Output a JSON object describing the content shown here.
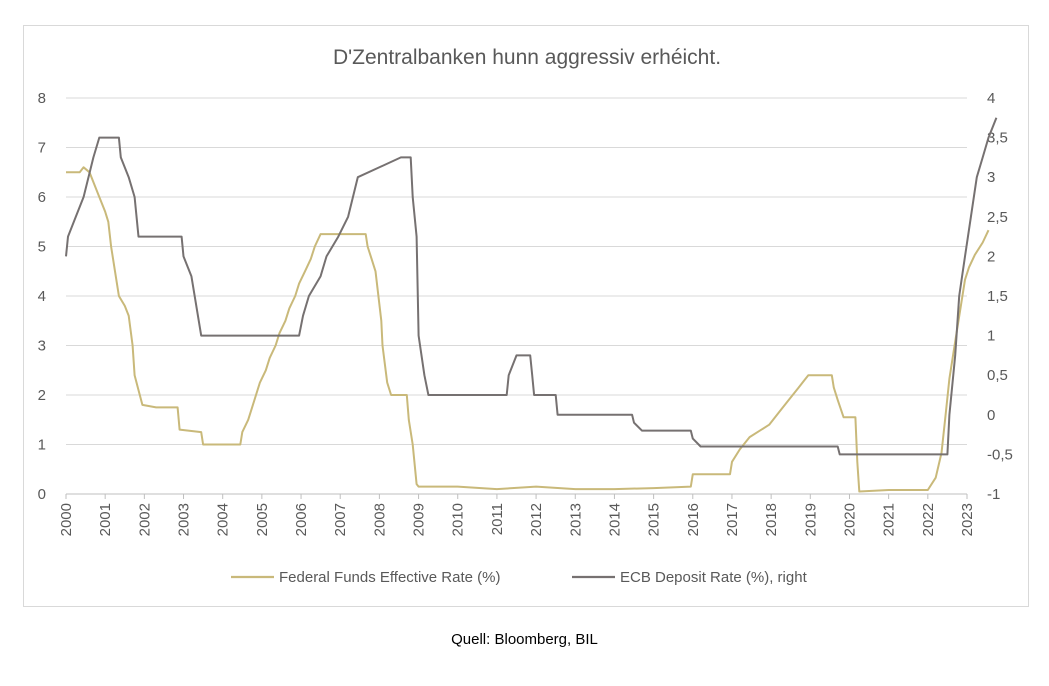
{
  "source": "Quell: Bloomberg, BIL",
  "chart_data": {
    "type": "line",
    "title": "D'Zentralbanken hunn aggressiv erhéicht.",
    "xlabel": "",
    "ylabel": "",
    "x_ticks": [
      "2000",
      "2001",
      "2002",
      "2003",
      "2004",
      "2005",
      "2006",
      "2007",
      "2008",
      "2009",
      "2010",
      "2011",
      "2012",
      "2013",
      "2014",
      "2015",
      "2016",
      "2017",
      "2018",
      "2019",
      "2020",
      "2021",
      "2022",
      "2023"
    ],
    "x_range": [
      2000,
      2023
    ],
    "y_left": {
      "range": [
        0,
        8
      ],
      "ticks": [
        "0",
        "1",
        "2",
        "3",
        "4",
        "5",
        "6",
        "7",
        "8"
      ]
    },
    "y_right": {
      "range": [
        -1,
        4
      ],
      "ticks": [
        "-1",
        "-0,5",
        "0",
        "0,5",
        "1",
        "1,5",
        "2",
        "2,5",
        "3",
        "3,5",
        "4"
      ]
    },
    "grid": "horizontal",
    "legend_position": "bottom",
    "series": [
      {
        "name": "Federal Funds Effective Rate (%)",
        "axis": "left",
        "color": "#c9b97a",
        "points": [
          [
            2000.0,
            6.5
          ],
          [
            2000.35,
            6.5
          ],
          [
            2000.45,
            6.6
          ],
          [
            2000.6,
            6.5
          ],
          [
            2000.85,
            6.0
          ],
          [
            2001.0,
            5.7
          ],
          [
            2001.08,
            5.5
          ],
          [
            2001.15,
            5.0
          ],
          [
            2001.25,
            4.5
          ],
          [
            2001.35,
            4.0
          ],
          [
            2001.5,
            3.8
          ],
          [
            2001.6,
            3.6
          ],
          [
            2001.7,
            3.0
          ],
          [
            2001.75,
            2.4
          ],
          [
            2001.85,
            2.1
          ],
          [
            2001.95,
            1.8
          ],
          [
            2002.3,
            1.75
          ],
          [
            2002.85,
            1.75
          ],
          [
            2002.9,
            1.3
          ],
          [
            2003.45,
            1.25
          ],
          [
            2003.5,
            1.0
          ],
          [
            2004.0,
            1.0
          ],
          [
            2004.45,
            1.0
          ],
          [
            2004.5,
            1.25
          ],
          [
            2004.65,
            1.5
          ],
          [
            2004.75,
            1.75
          ],
          [
            2004.85,
            2.0
          ],
          [
            2004.95,
            2.25
          ],
          [
            2005.1,
            2.5
          ],
          [
            2005.2,
            2.75
          ],
          [
            2005.35,
            3.0
          ],
          [
            2005.45,
            3.25
          ],
          [
            2005.6,
            3.5
          ],
          [
            2005.7,
            3.75
          ],
          [
            2005.85,
            4.0
          ],
          [
            2005.95,
            4.25
          ],
          [
            2006.1,
            4.5
          ],
          [
            2006.25,
            4.75
          ],
          [
            2006.35,
            5.0
          ],
          [
            2006.5,
            5.25
          ],
          [
            2007.65,
            5.25
          ],
          [
            2007.7,
            5.0
          ],
          [
            2007.8,
            4.75
          ],
          [
            2007.9,
            4.5
          ],
          [
            2008.05,
            3.5
          ],
          [
            2008.08,
            3.0
          ],
          [
            2008.2,
            2.25
          ],
          [
            2008.3,
            2.0
          ],
          [
            2008.7,
            2.0
          ],
          [
            2008.75,
            1.5
          ],
          [
            2008.85,
            1.0
          ],
          [
            2008.95,
            0.2
          ],
          [
            2009.0,
            0.15
          ],
          [
            2010.0,
            0.15
          ],
          [
            2011.0,
            0.1
          ],
          [
            2012.0,
            0.15
          ],
          [
            2013.0,
            0.1
          ],
          [
            2014.0,
            0.1
          ],
          [
            2015.0,
            0.12
          ],
          [
            2015.95,
            0.15
          ],
          [
            2016.0,
            0.4
          ],
          [
            2016.95,
            0.4
          ],
          [
            2017.0,
            0.65
          ],
          [
            2017.2,
            0.9
          ],
          [
            2017.45,
            1.15
          ],
          [
            2017.95,
            1.4
          ],
          [
            2018.2,
            1.65
          ],
          [
            2018.45,
            1.9
          ],
          [
            2018.7,
            2.15
          ],
          [
            2018.95,
            2.4
          ],
          [
            2019.55,
            2.4
          ],
          [
            2019.6,
            2.15
          ],
          [
            2019.7,
            1.9
          ],
          [
            2019.85,
            1.55
          ],
          [
            2020.15,
            1.55
          ],
          [
            2020.2,
            0.65
          ],
          [
            2020.25,
            0.05
          ],
          [
            2021.0,
            0.08
          ],
          [
            2022.0,
            0.08
          ],
          [
            2022.2,
            0.33
          ],
          [
            2022.35,
            0.83
          ],
          [
            2022.45,
            1.58
          ],
          [
            2022.55,
            2.33
          ],
          [
            2022.7,
            3.08
          ],
          [
            2022.85,
            3.83
          ],
          [
            2022.95,
            4.33
          ],
          [
            2023.05,
            4.58
          ],
          [
            2023.2,
            4.83
          ],
          [
            2023.4,
            5.08
          ],
          [
            2023.55,
            5.33
          ]
        ]
      },
      {
        "name": "ECB Deposit Rate (%), right",
        "axis": "right",
        "color": "#767171",
        "points": [
          [
            2000.0,
            2.0
          ],
          [
            2000.05,
            2.25
          ],
          [
            2000.25,
            2.5
          ],
          [
            2000.45,
            2.75
          ],
          [
            2000.7,
            3.25
          ],
          [
            2000.85,
            3.5
          ],
          [
            2001.35,
            3.5
          ],
          [
            2001.4,
            3.25
          ],
          [
            2001.6,
            3.0
          ],
          [
            2001.75,
            2.75
          ],
          [
            2001.85,
            2.25
          ],
          [
            2002.95,
            2.25
          ],
          [
            2003.0,
            2.0
          ],
          [
            2003.2,
            1.75
          ],
          [
            2003.45,
            1.0
          ],
          [
            2005.95,
            1.0
          ],
          [
            2006.05,
            1.25
          ],
          [
            2006.2,
            1.5
          ],
          [
            2006.5,
            1.75
          ],
          [
            2006.65,
            2.0
          ],
          [
            2006.95,
            2.25
          ],
          [
            2007.2,
            2.5
          ],
          [
            2007.45,
            3.0
          ],
          [
            2008.55,
            3.25
          ],
          [
            2008.8,
            3.25
          ],
          [
            2008.85,
            2.75
          ],
          [
            2008.95,
            2.25
          ],
          [
            2009.0,
            1.0
          ],
          [
            2009.15,
            0.5
          ],
          [
            2009.25,
            0.25
          ],
          [
            2011.25,
            0.25
          ],
          [
            2011.3,
            0.5
          ],
          [
            2011.5,
            0.75
          ],
          [
            2011.85,
            0.75
          ],
          [
            2011.9,
            0.5
          ],
          [
            2011.95,
            0.25
          ],
          [
            2012.5,
            0.25
          ],
          [
            2012.55,
            0.0
          ],
          [
            2014.45,
            0.0
          ],
          [
            2014.5,
            -0.1
          ],
          [
            2014.7,
            -0.2
          ],
          [
            2015.95,
            -0.2
          ],
          [
            2016.0,
            -0.3
          ],
          [
            2016.2,
            -0.4
          ],
          [
            2019.7,
            -0.4
          ],
          [
            2019.75,
            -0.5
          ],
          [
            2022.5,
            -0.5
          ],
          [
            2022.55,
            0.0
          ],
          [
            2022.7,
            0.75
          ],
          [
            2022.8,
            1.5
          ],
          [
            2022.95,
            2.0
          ],
          [
            2023.1,
            2.5
          ],
          [
            2023.25,
            3.0
          ],
          [
            2023.4,
            3.25
          ],
          [
            2023.55,
            3.5
          ],
          [
            2023.75,
            3.75
          ]
        ]
      }
    ]
  }
}
